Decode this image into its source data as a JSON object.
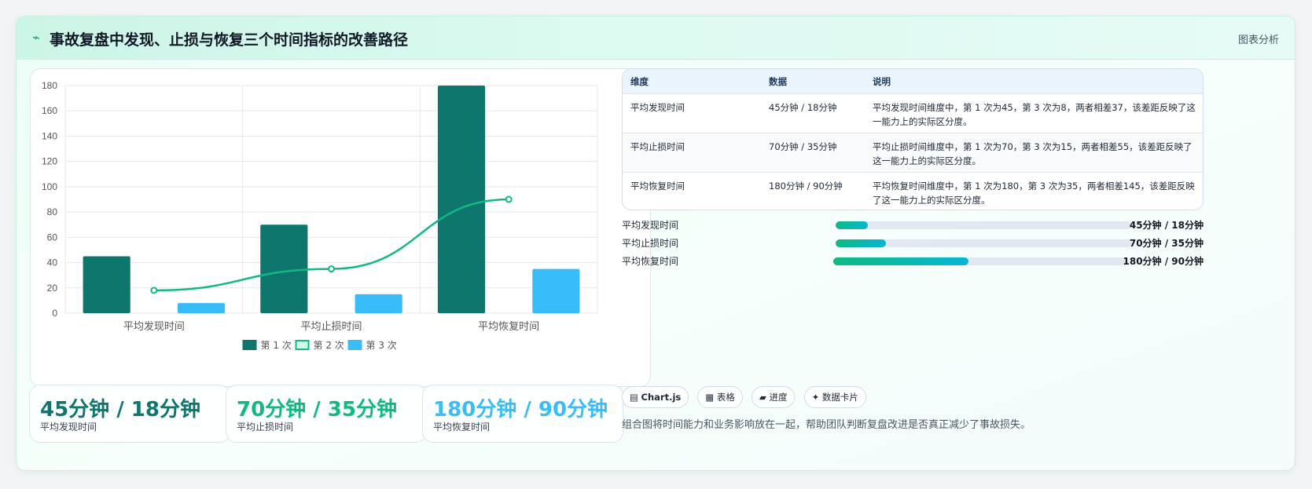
{
  "header": {
    "icon": "lightning-icon",
    "icon_glyph": "⌁",
    "title": "事故复盘中发现、止损与恢复三个时间指标的改善路径",
    "tag": "图表分析"
  },
  "chart_data": {
    "type": "bar",
    "categories": [
      "平均发现时间",
      "平均止损时间",
      "平均恢复时间"
    ],
    "series": [
      {
        "name": "第 1 次",
        "type": "bar",
        "values": [
          45,
          70,
          180
        ],
        "color": "#0f766e"
      },
      {
        "name": "第 2 次",
        "type": "line",
        "values": [
          18,
          35,
          90
        ],
        "color": "#10b981"
      },
      {
        "name": "第 3 次",
        "type": "bar",
        "values": [
          8,
          15,
          35
        ],
        "color": "#38bdf8"
      }
    ],
    "ylim": [
      0,
      180
    ],
    "yticks": [
      "0",
      "20",
      "40",
      "60",
      "80",
      "100",
      "120",
      "140",
      "160",
      "180"
    ],
    "grid": true,
    "legend_position": "bottom"
  },
  "stats": [
    {
      "value": "45分钟 / 18分钟",
      "label": "平均发现时间",
      "color": "#0f766e"
    },
    {
      "value": "70分钟 / 35分钟",
      "label": "平均止损时间",
      "color": "#10b981"
    },
    {
      "value": "180分钟 / 90分钟",
      "label": "平均恢复时间",
      "color": "#38bdf8"
    }
  ],
  "table": {
    "headers": [
      "维度",
      "数据",
      "说明"
    ],
    "rows": [
      {
        "dimension": "平均发现时间",
        "data": "45分钟 / 18分钟",
        "note": "平均发现时间维度中，第 1 次为45，第 3 次为8，两者相差37，该差距反映了这一能力上的实际区分度。"
      },
      {
        "dimension": "平均止损时间",
        "data": "70分钟 / 35分钟",
        "note": "平均止损时间维度中，第 1 次为70，第 3 次为15，两者相差55，该差距反映了这一能力上的实际区分度。"
      },
      {
        "dimension": "平均恢复时间",
        "data": "180分钟 / 90分钟",
        "note": "平均恢复时间维度中，第 1 次为180，第 3 次为35，两者相差145，该差距反映了这一能力上的实际区分度。"
      }
    ]
  },
  "progress": [
    {
      "label": "平均发现时间",
      "value": "45分钟 / 18分钟",
      "fraction": 0.11
    },
    {
      "label": "平均止损时间",
      "value": "70分钟 / 35分钟",
      "fraction": 0.17
    },
    {
      "label": "平均恢复时间",
      "value": "180分钟 / 90分钟",
      "fraction": 0.46
    }
  ],
  "chips": [
    {
      "icon": "chart-icon",
      "glyph": "▤",
      "label": "Chart.js"
    },
    {
      "icon": "table-icon",
      "glyph": "▦",
      "label": "表格"
    },
    {
      "icon": "progress-icon",
      "glyph": "▰",
      "label": "进度"
    },
    {
      "icon": "card-icon",
      "glyph": "✦",
      "label": "数据卡片"
    }
  ],
  "footnote": "组合图将时间能力和业务影响放在一起，帮助团队判断复盘改进是否真正减少了事故损失。"
}
